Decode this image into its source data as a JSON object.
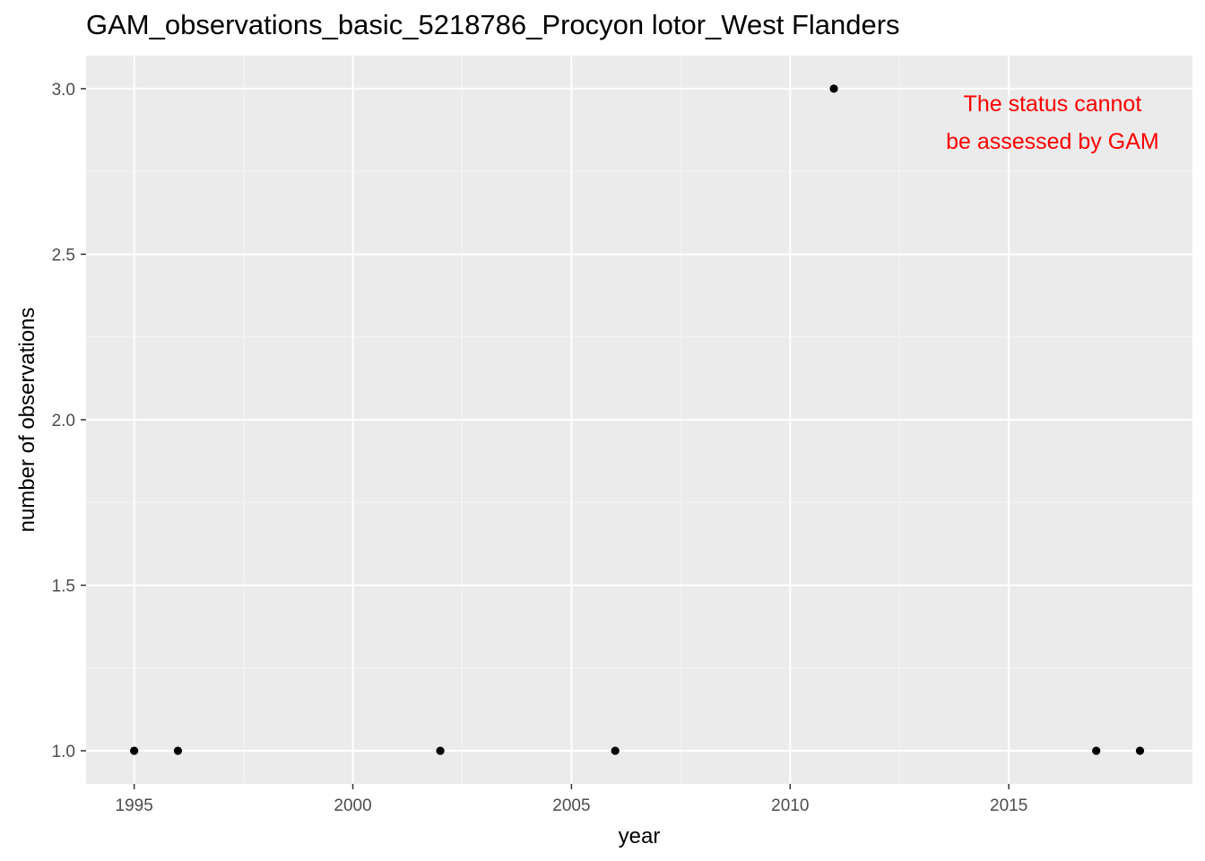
{
  "chart_data": {
    "type": "scatter",
    "title": "GAM_observations_basic_5218786_Procyon lotor_West Flanders",
    "xlabel": "year",
    "ylabel": "number of observations",
    "xlim": [
      1993.9,
      2019.2
    ],
    "ylim": [
      0.9,
      3.1
    ],
    "xticks": [
      1995,
      2000,
      2005,
      2010,
      2015
    ],
    "yticks": [
      1.0,
      1.5,
      2.0,
      2.5,
      3.0
    ],
    "ytick_labels": [
      "1.0",
      "1.5",
      "2.0",
      "2.5",
      "3.0"
    ],
    "grid": true,
    "legend": "none",
    "points": [
      {
        "x": 1995,
        "y": 1
      },
      {
        "x": 1996,
        "y": 1
      },
      {
        "x": 2002,
        "y": 1
      },
      {
        "x": 2006,
        "y": 1
      },
      {
        "x": 2011,
        "y": 3
      },
      {
        "x": 2017,
        "y": 1
      },
      {
        "x": 2018,
        "y": 1
      }
    ],
    "annotation": {
      "lines": [
        "The status cannot",
        "be assessed by GAM"
      ],
      "color": "#ff0000",
      "x": 2016,
      "y": 2.9
    },
    "colors": {
      "panel": "#ebebeb",
      "grid_major": "#ffffff",
      "point": "#000000"
    }
  }
}
